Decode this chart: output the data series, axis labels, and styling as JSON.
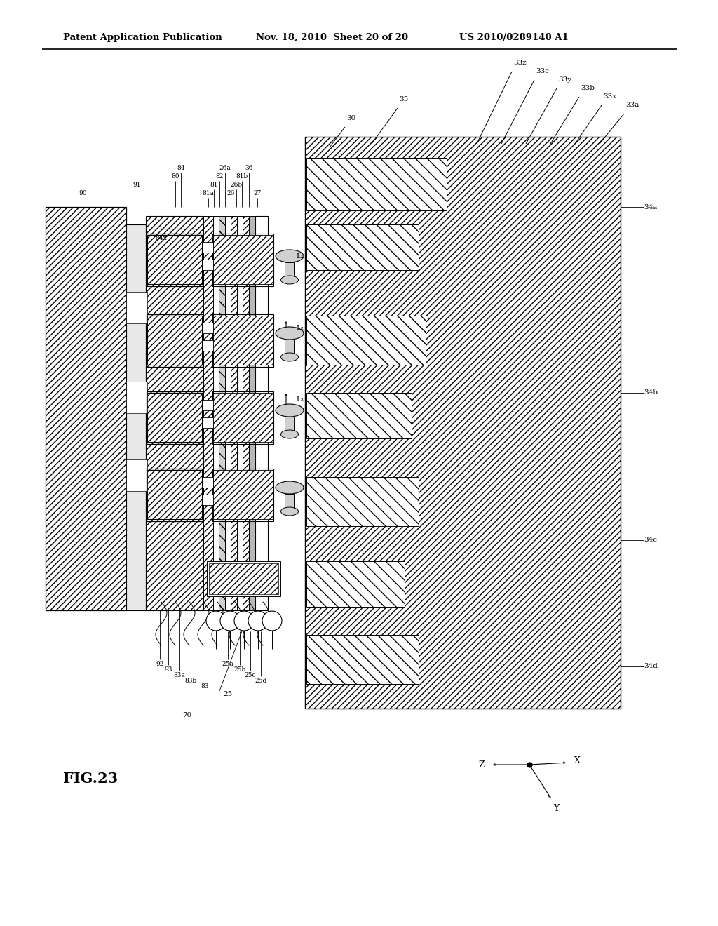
{
  "header_left": "Patent Application Publication",
  "header_mid": "Nov. 18, 2010  Sheet 20 of 20",
  "header_right": "US 2010/0289140 A1",
  "fig_label": "FIG.23",
  "bg": "#ffffff"
}
